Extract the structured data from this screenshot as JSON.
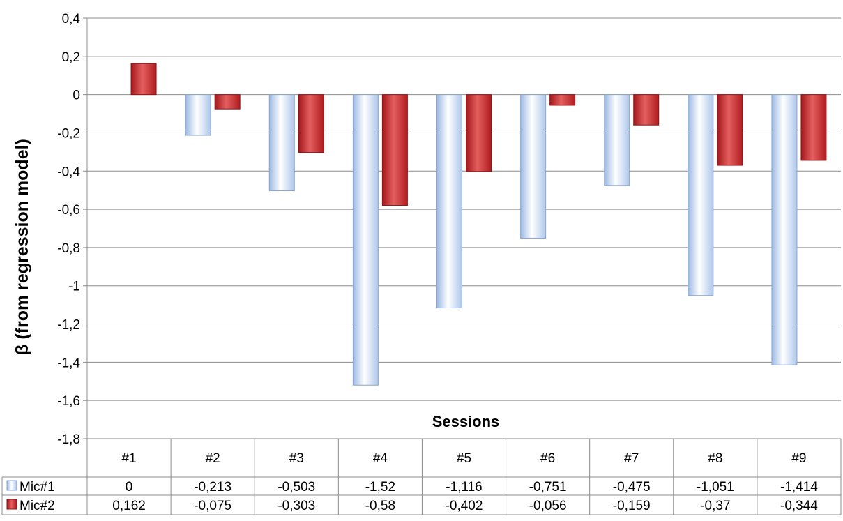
{
  "chart_data": {
    "type": "bar",
    "title": "",
    "xlabel": "Sessions",
    "ylabel": "β (from regression model)",
    "categories": [
      "#1",
      "#2",
      "#3",
      "#4",
      "#5",
      "#6",
      "#7",
      "#8",
      "#9"
    ],
    "series": [
      {
        "name": "Mic#1",
        "values": [
          0,
          -0.213,
          -0.503,
          -1.52,
          -1.116,
          -0.751,
          -0.475,
          -1.051,
          -1.414
        ],
        "labels": [
          "0",
          "-0,213",
          "-0,503",
          "-1,52",
          "-1,116",
          "-0,751",
          "-0,475",
          "-1,051",
          "-1,414"
        ],
        "color": "#c6d9f1"
      },
      {
        "name": "Mic#2",
        "values": [
          0.162,
          -0.075,
          -0.303,
          -0.58,
          -0.402,
          -0.056,
          -0.159,
          -0.37,
          -0.344
        ],
        "labels": [
          "0,162",
          "-0,075",
          "-0,303",
          "-0,58",
          "-0,402",
          "-0,056",
          "-0,159",
          "-0,37",
          "-0,344"
        ],
        "color": "#c0282a"
      }
    ],
    "ylim": [
      -1.8,
      0.4
    ],
    "yticks": [
      0.4,
      0.2,
      0,
      -0.2,
      -0.4,
      -0.6,
      -0.8,
      -1,
      -1.2,
      -1.4,
      -1.6,
      -1.8
    ],
    "ytick_labels": [
      "0,4",
      "0,2",
      "0",
      "-0,2",
      "-0,4",
      "-0,6",
      "-0,8",
      "-1",
      "-1,2",
      "-1,4",
      "-1,6",
      "-1,8"
    ],
    "grid": true,
    "legend": "data-table"
  }
}
